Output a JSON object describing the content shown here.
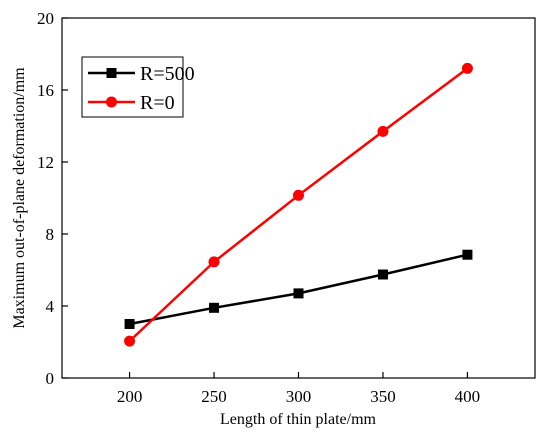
{
  "chart_data": {
    "type": "line",
    "title": "",
    "xlabel": "Length of thin plate/mm",
    "ylabel": "Maximum out-of-plane deformation/mm",
    "x": [
      200,
      250,
      300,
      350,
      400
    ],
    "xlim": [
      160,
      440
    ],
    "ylim": [
      0,
      20
    ],
    "xticks": [
      200,
      250,
      300,
      350,
      400
    ],
    "yticks": [
      0,
      4,
      8,
      12,
      16,
      20
    ],
    "grid": false,
    "legend_position": "top-left",
    "series": [
      {
        "name": "R=500",
        "values": [
          3.0,
          3.9,
          4.7,
          5.75,
          6.85
        ],
        "color": "#000000",
        "marker": "square"
      },
      {
        "name": "R=0",
        "values": [
          2.05,
          6.45,
          10.15,
          13.7,
          17.2
        ],
        "color": "#ff0000",
        "marker": "circle"
      }
    ]
  }
}
